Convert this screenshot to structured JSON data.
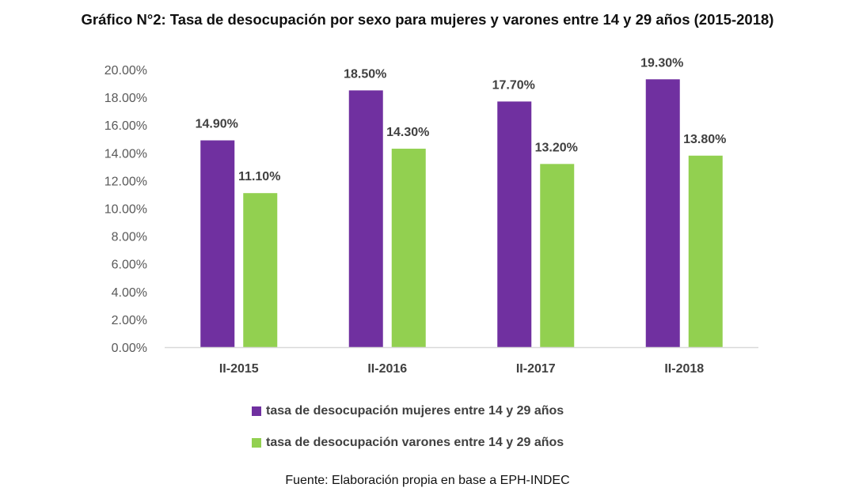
{
  "chart_data": {
    "type": "bar",
    "title": "Gráfico N°2: Tasa de desocupación por sexo para mujeres y varones entre 14 y 29 años (2015-2018)",
    "categories": [
      "II-2015",
      "II-2016",
      "II-2017",
      "II-2018"
    ],
    "series": [
      {
        "name": "tasa de desocupación mujeres entre 14 y 29 años",
        "values": [
          14.9,
          18.5,
          17.7,
          19.3
        ],
        "labels": [
          "14.90%",
          "18.50%",
          "17.70%",
          "19.30%"
        ],
        "color": "#7030A0"
      },
      {
        "name": "tasa de desocupación varones entre 14 y 29 años",
        "values": [
          11.1,
          14.3,
          13.2,
          13.8
        ],
        "labels": [
          "11.10%",
          "14.30%",
          "13.20%",
          "13.80%"
        ],
        "color": "#92D050"
      }
    ],
    "ylim": [
      0,
      20
    ],
    "yticks": [
      0,
      2,
      4,
      6,
      8,
      10,
      12,
      14,
      16,
      18,
      20
    ],
    "ytick_labels": [
      "0.00%",
      "2.00%",
      "4.00%",
      "6.00%",
      "8.00%",
      "10.00%",
      "12.00%",
      "14.00%",
      "16.00%",
      "18.00%",
      "20.00%"
    ],
    "xlabel": "",
    "ylabel": "",
    "grid": false,
    "legend_position": "bottom"
  },
  "source": "Fuente: Elaboración propia en base a EPH-INDEC"
}
